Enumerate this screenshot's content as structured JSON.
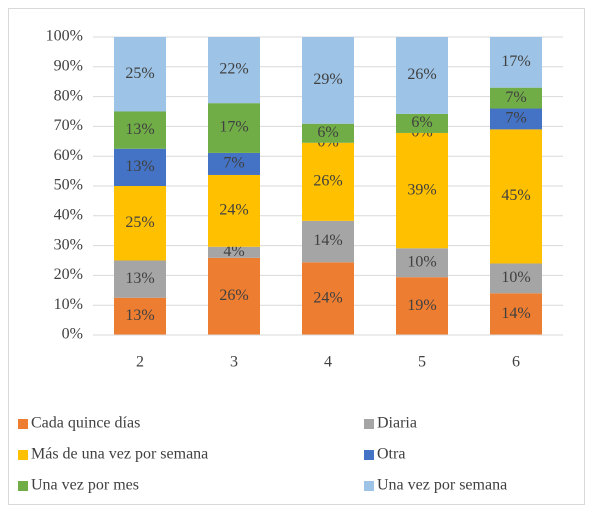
{
  "chart_data": {
    "type": "stacked_bar_percent",
    "categories": [
      "2",
      "3",
      "4",
      "5",
      "6"
    ],
    "series": [
      {
        "name": "Cada quince días",
        "color": "#ed7d31",
        "values": [
          12.5,
          25.9,
          24.4,
          19.4,
          14
        ],
        "value_labels": [
          "13%",
          "26%",
          "24%",
          "19%",
          "14%"
        ]
      },
      {
        "name": "Diaria",
        "color": "#a5a5a5",
        "values": [
          12.5,
          3.7,
          13.9,
          9.7,
          10
        ],
        "value_labels": [
          "13%",
          "4%",
          "14%",
          "10%",
          "10%"
        ]
      },
      {
        "name": "Más de una vez por semana",
        "color": "#ffc000",
        "values": [
          25,
          24.1,
          26.2,
          38.7,
          45
        ],
        "value_labels": [
          "25%",
          "24%",
          "26%",
          "39%",
          "45%"
        ]
      },
      {
        "name": "Otra",
        "color": "#4472c4",
        "values": [
          12.5,
          7.4,
          0,
          0,
          7
        ],
        "value_labels": [
          "13%",
          "7%",
          "0%",
          "0%",
          "7%"
        ]
      },
      {
        "name": "Una vez por mes",
        "color": "#70ad47",
        "values": [
          12.5,
          16.7,
          6.4,
          6.4,
          7
        ],
        "value_labels": [
          "13%",
          "17%",
          "6%",
          "6%",
          "7%"
        ]
      },
      {
        "name": "Una vez por semana",
        "color": "#9dc3e6",
        "values": [
          25,
          22.2,
          29.1,
          25.8,
          17
        ],
        "value_labels": [
          "25%",
          "22%",
          "29%",
          "26%",
          "17%"
        ]
      }
    ],
    "ylim": [
      0,
      100
    ],
    "yticks": [
      {
        "value": 0,
        "label": "0%"
      },
      {
        "value": 10,
        "label": "10%"
      },
      {
        "value": 20,
        "label": "20%"
      },
      {
        "value": 30,
        "label": "30%"
      },
      {
        "value": 40,
        "label": "40%"
      },
      {
        "value": 50,
        "label": "50%"
      },
      {
        "value": 60,
        "label": "60%"
      },
      {
        "value": 70,
        "label": "70%"
      },
      {
        "value": 80,
        "label": "80%"
      },
      {
        "value": 90,
        "label": "90%"
      },
      {
        "value": 100,
        "label": "100%"
      }
    ],
    "grid": true,
    "legend": "bottom"
  }
}
